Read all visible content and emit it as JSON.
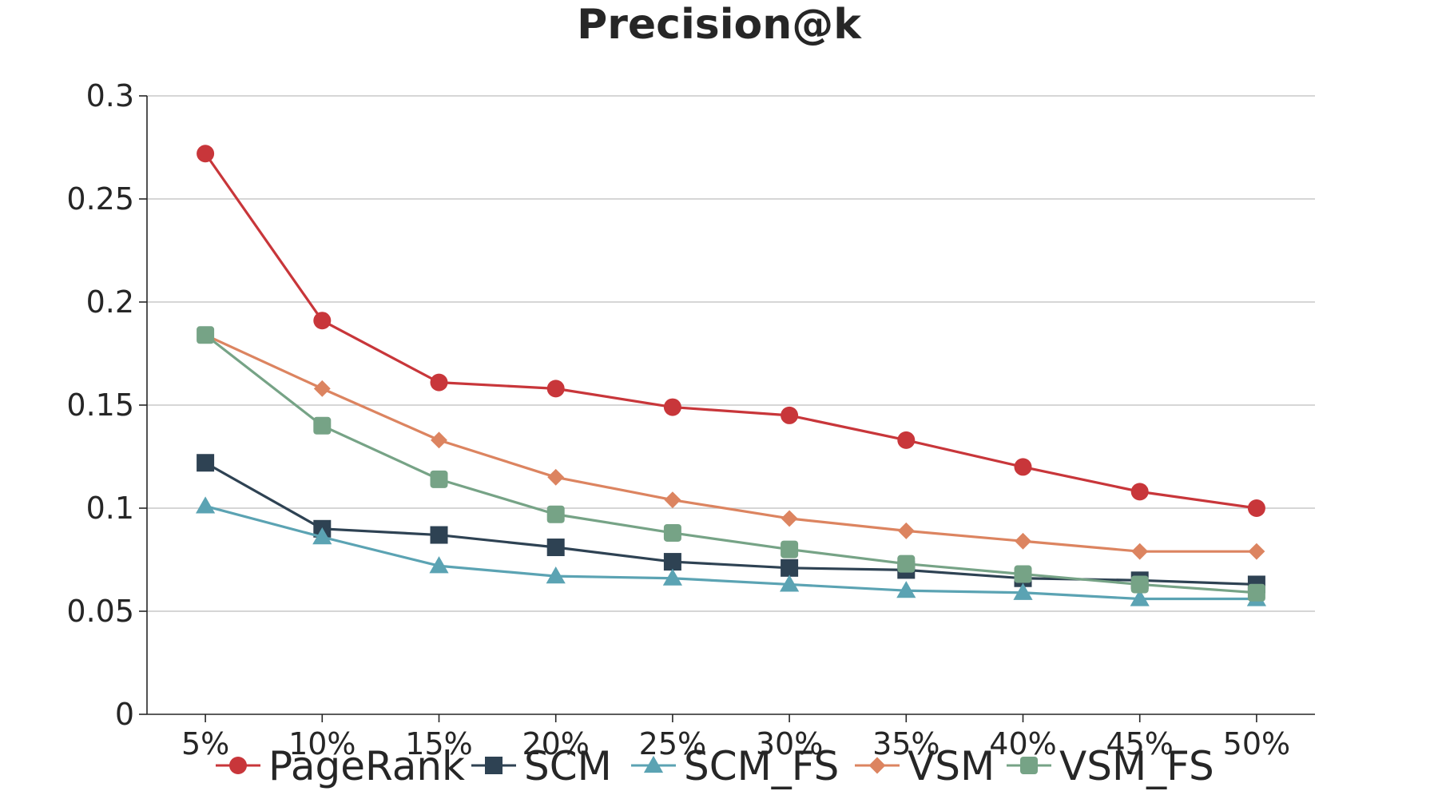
{
  "chart_data": {
    "type": "line",
    "title": "Precision@k",
    "xlabel": "",
    "ylabel": "",
    "categories": [
      "5%",
      "10%",
      "15%",
      "20%",
      "25%",
      "30%",
      "35%",
      "40%",
      "45%",
      "50%"
    ],
    "ylim": [
      0,
      0.3
    ],
    "yticks": [
      "0",
      "0.05",
      "0.1",
      "0.15",
      "0.2",
      "0.25",
      "0.3"
    ],
    "grid": true,
    "legend_position": "bottom",
    "series": [
      {
        "name": "PageRank",
        "color": "#c8363a",
        "marker": "circle",
        "values": [
          0.272,
          0.191,
          0.161,
          0.158,
          0.149,
          0.145,
          0.133,
          0.12,
          0.108,
          0.1
        ]
      },
      {
        "name": "SCM",
        "color": "#2e4253",
        "marker": "square",
        "values": [
          0.122,
          0.09,
          0.087,
          0.081,
          0.074,
          0.071,
          0.07,
          0.066,
          0.065,
          0.063
        ]
      },
      {
        "name": "SCM_FS",
        "color": "#5ba3b3",
        "marker": "triangle",
        "values": [
          0.101,
          0.086,
          0.072,
          0.067,
          0.066,
          0.063,
          0.06,
          0.059,
          0.056,
          0.056
        ]
      },
      {
        "name": "VSM",
        "color": "#dc8460",
        "marker": "diamond",
        "values": [
          0.184,
          0.158,
          0.133,
          0.115,
          0.104,
          0.095,
          0.089,
          0.084,
          0.079,
          0.079
        ]
      },
      {
        "name": "VSM_FS",
        "color": "#76a386",
        "marker": "rounded-square",
        "values": [
          0.184,
          0.14,
          0.114,
          0.097,
          0.088,
          0.08,
          0.073,
          0.068,
          0.063,
          0.059
        ]
      }
    ]
  }
}
